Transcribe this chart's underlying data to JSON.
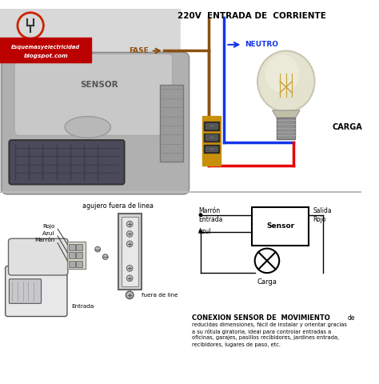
{
  "title_text": "220V  ENTRADA DE  CORRIENTE",
  "fase_label": "FASE",
  "neutro_label": "NEUTRO",
  "sensor_label": "SENSOR",
  "carga_label": "CARGA",
  "blog_line1": "Esquemasyelectricidad",
  "blog_line2": "blogspot.com",
  "bottom_title": "agujero fuera de linea",
  "wire_labels": [
    "Rojo",
    "Azul",
    "Marrón"
  ],
  "fuera_label": "fuera de line",
  "entrada_label": "Entrada",
  "schema_marron": "Marrón",
  "schema_entrada": "Entrada",
  "schema_azul": "Azul",
  "schema_sensor": "Sensor",
  "schema_salida": "Salida",
  "schema_rojo": "Rojo",
  "schema_carga": "Carga",
  "conexion_title": "CONEXION SENSOR DE  MOVIMIENTO",
  "conexion_de": "de",
  "conexion_body": "reducidas dimensiones, fácil de instalar y orientar gracias\na su rótula giratoria, ideal para controlar entradas a\noficinas, garajes, pasillos recibidores, jardines entrada,\nrecibidores, lugares de paso, etc.",
  "top_bg": "#d8d8d8",
  "bot_bg": "#f0f0ee",
  "white_bg": "#ffffff",
  "brown_wire": "#8B5010",
  "blue_wire": "#1535e8",
  "red_wire": "#e80000",
  "fase_color": "#8B5010",
  "neutro_color": "#1535e8",
  "connector_color": "#c8900a",
  "blog_bg": "#bb0000",
  "sensor_body": "#aaaaaa",
  "sensor_dark": "#888888",
  "sensor_top": "#c5c5c5",
  "pir_color": "#555566",
  "bulb_glass": "#d8d8c0",
  "bulb_base": "#888888"
}
